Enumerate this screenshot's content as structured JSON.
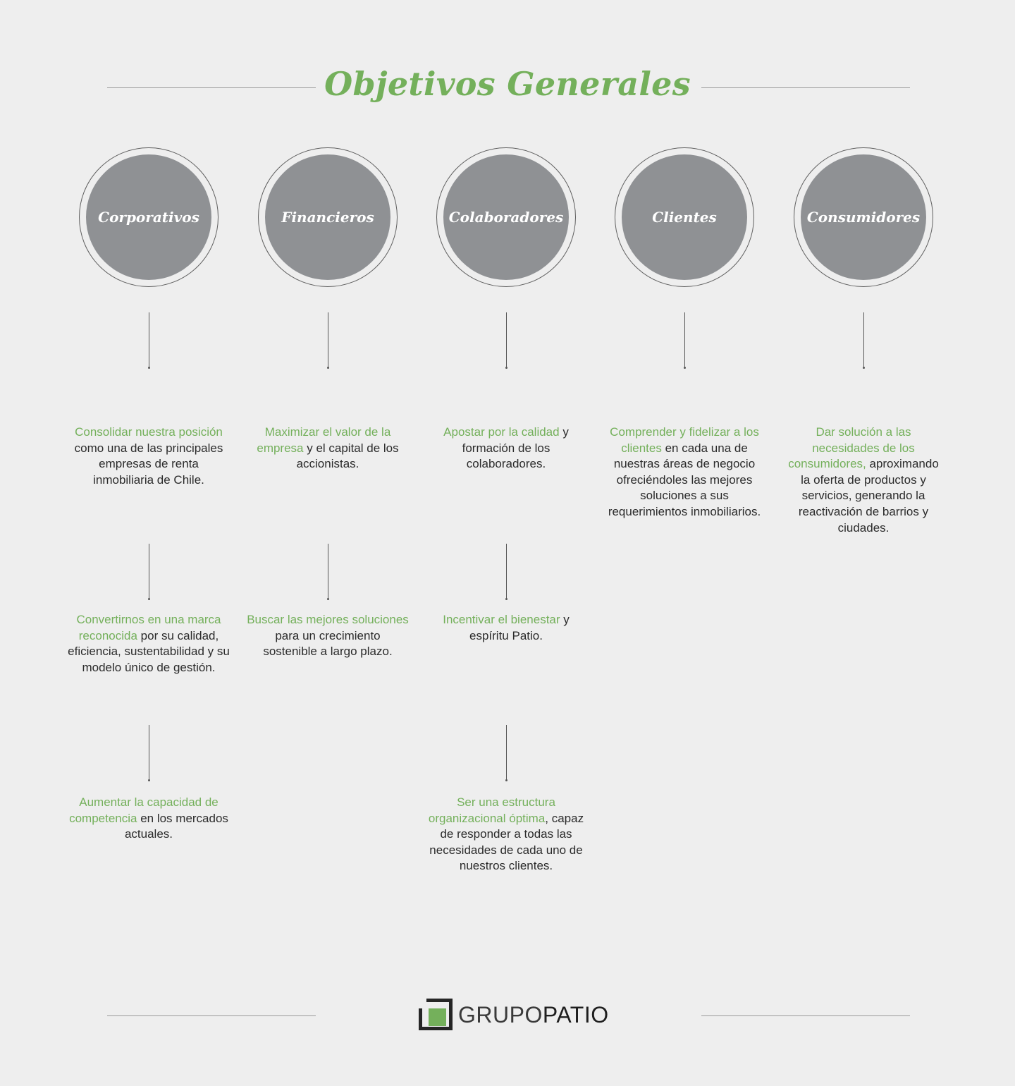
{
  "title": "Objetivos Generales",
  "colors": {
    "accent": "#74b05b",
    "circle": "#8f9194",
    "background": "#eeeeee",
    "text": "#2b2b2b"
  },
  "columns": [
    {
      "label": "Corporativos",
      "items": [
        [
          {
            "t": "Consolidar nuestra posición",
            "g": true
          },
          {
            "t": " como una de las principales empresas de renta inmobiliaria de Chile.",
            "g": false
          }
        ],
        [
          {
            "t": "Convertirnos en una marca reconocida",
            "g": true
          },
          {
            "t": " por su calidad, eficiencia, sustentabilidad y su modelo único de gestión.",
            "g": false
          }
        ],
        [
          {
            "t": "Aumentar la capacidad de competencia",
            "g": true
          },
          {
            "t": " en los mercados actuales.",
            "g": false
          }
        ]
      ]
    },
    {
      "label": "Financieros",
      "items": [
        [
          {
            "t": "Maximizar el valor de la empresa",
            "g": true
          },
          {
            "t": " y el capital de los accionistas.",
            "g": false
          }
        ],
        [
          {
            "t": "Buscar las mejores soluciones",
            "g": true
          },
          {
            "t": " para un crecimiento sostenible a largo plazo.",
            "g": false
          }
        ]
      ]
    },
    {
      "label": "Colaboradores",
      "items": [
        [
          {
            "t": "Apostar por la calidad",
            "g": true
          },
          {
            "t": " y formación de los colaboradores.",
            "g": false
          }
        ],
        [
          {
            "t": "Incentivar el bienestar",
            "g": true
          },
          {
            "t": " y espíritu Patio.",
            "g": false
          }
        ],
        [
          {
            "t": "Ser una estructura organizacional óptima",
            "g": true
          },
          {
            "t": ", capaz de responder a todas las necesidades de cada uno de nuestros clientes.",
            "g": false
          }
        ]
      ]
    },
    {
      "label": "Clientes",
      "items": [
        [
          {
            "t": "Comprender y fidelizar a los clientes",
            "g": true
          },
          {
            "t": " en cada una de nuestras áreas de negocio ofreciéndoles las mejores soluciones a sus requerimientos inmobiliarios.",
            "g": false
          }
        ]
      ]
    },
    {
      "label": "Consumidores",
      "items": [
        [
          {
            "t": "Dar solución a las necesidades de los consumidores,",
            "g": true
          },
          {
            "t": " aproximando la oferta de productos y servicios, generando la reactivación de barrios y ciudades.",
            "g": false
          }
        ]
      ]
    }
  ],
  "logo": {
    "part1": "GRUPO",
    "part2": "PATIO"
  }
}
